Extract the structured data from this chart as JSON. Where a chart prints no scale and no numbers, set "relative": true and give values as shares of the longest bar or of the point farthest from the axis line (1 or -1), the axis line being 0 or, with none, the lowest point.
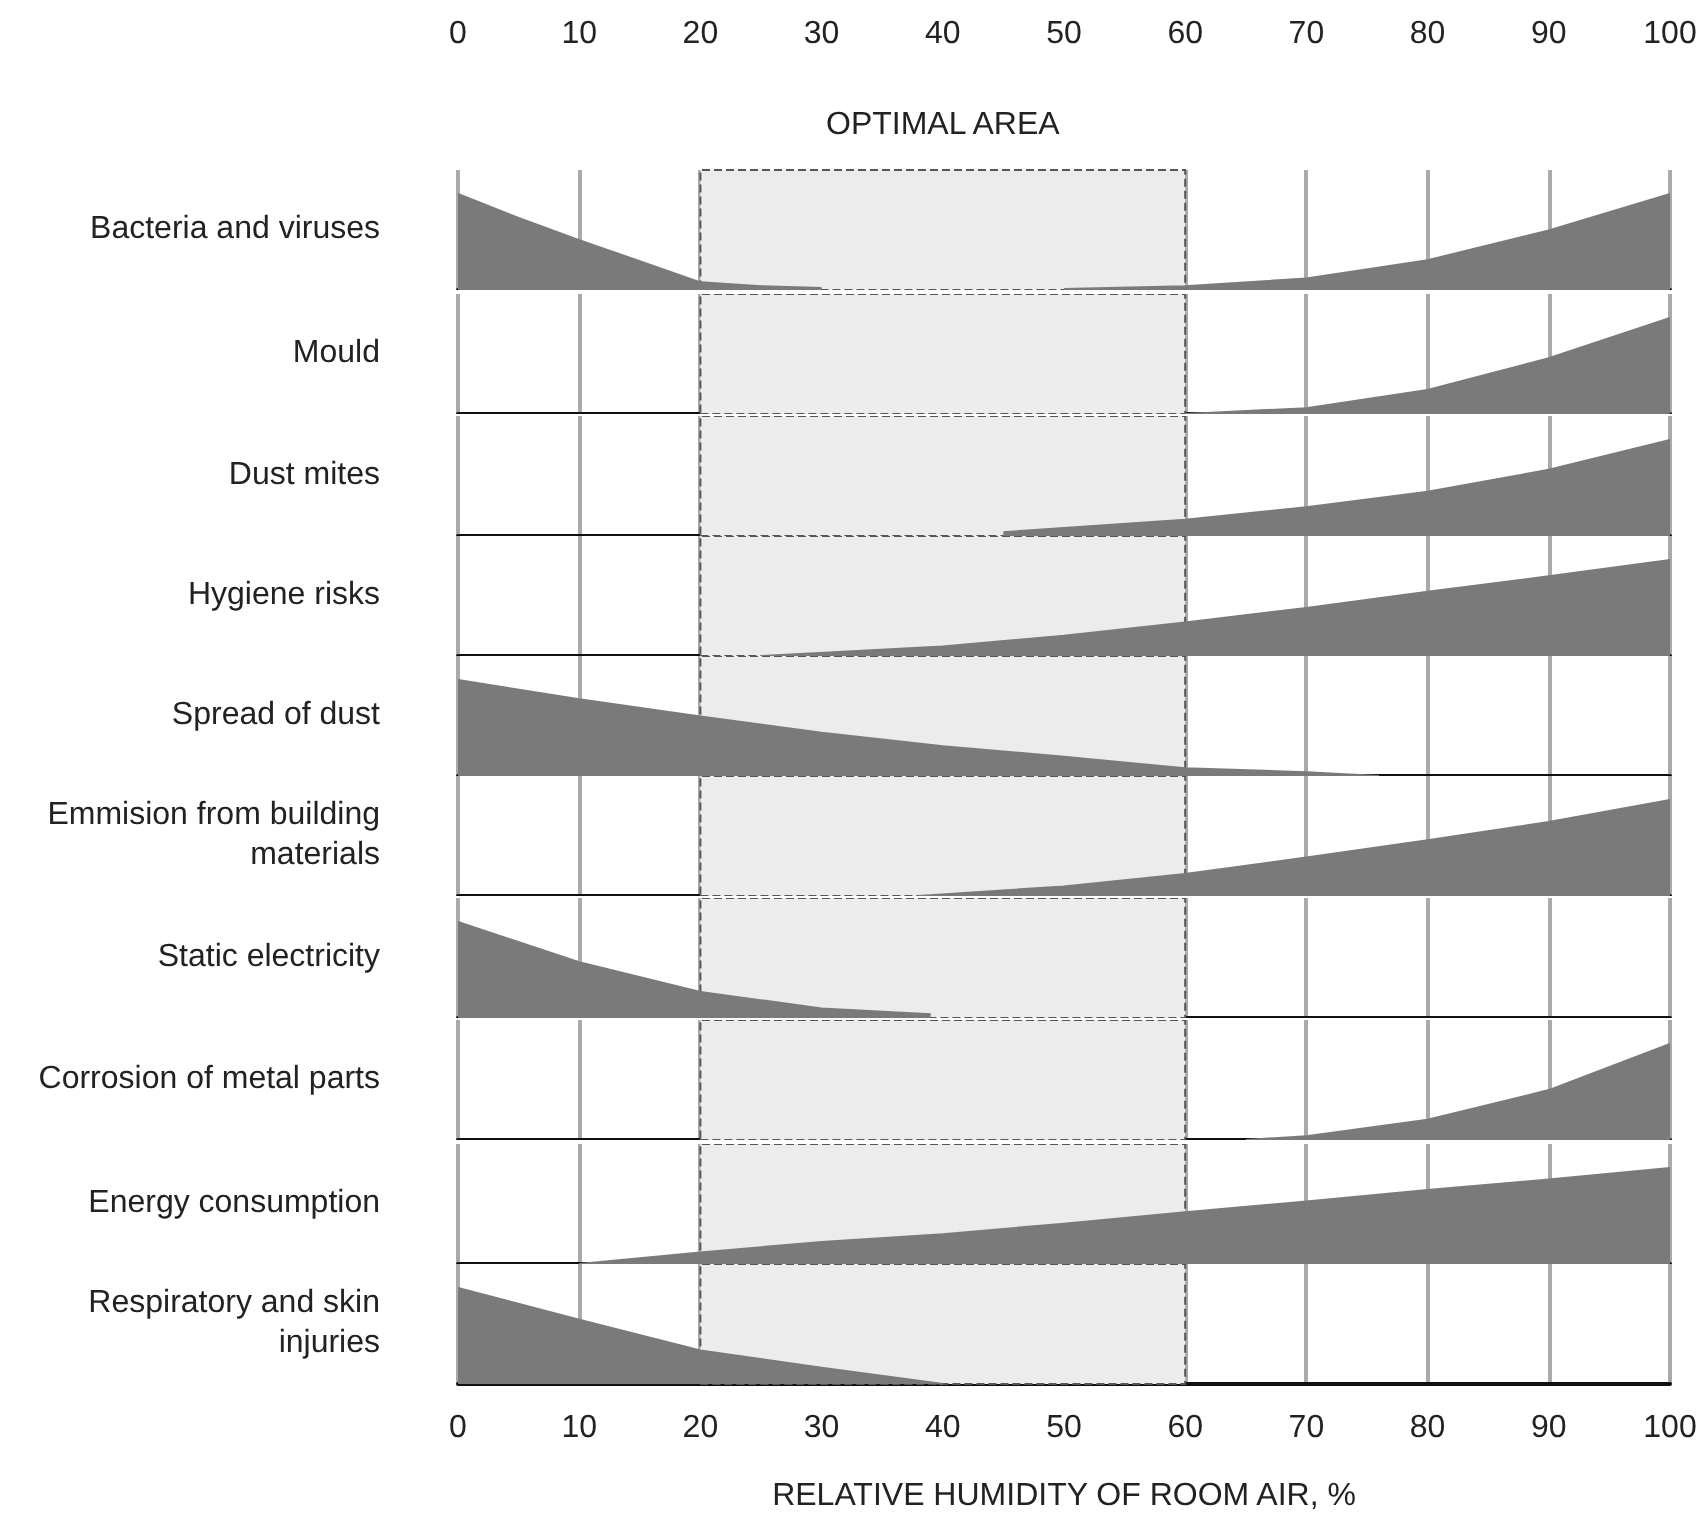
{
  "chart_data": [
    {
      "type": "area",
      "ylabel": "Bacteria and viruses",
      "relative": true,
      "xlim": [
        0,
        100
      ],
      "x2lim": [
        0,
        100
      ],
      "x2ticks": [
        0,
        10,
        20,
        30,
        40,
        50,
        60,
        70,
        80,
        90,
        100
      ],
      "grid": "x",
      "bands": [
        {
          "axis": "x",
          "from": 20,
          "to": 60,
          "label": "OPTIMAL AREA",
          "color": "#ececec"
        }
      ],
      "series": [
        {
          "color": "#7a7a7a",
          "x": [
            0,
            5,
            10,
            15,
            20,
            25,
            30,
            40,
            50,
            60,
            70,
            80,
            90,
            100
          ],
          "values": [
            1,
            0.75,
            0.52,
            0.3,
            0.08,
            0.04,
            0.02,
            null,
            0.01,
            0.04,
            0.12,
            0.31,
            0.62,
            1
          ]
        }
      ]
    },
    {
      "type": "area",
      "ylabel": "Mould",
      "relative": true,
      "xlim": [
        0,
        100
      ],
      "xticks": [
        0,
        10,
        20,
        30,
        40,
        50,
        60,
        70,
        80,
        90,
        100
      ],
      "grid": "x",
      "tick_labels": false,
      "bands": [
        {
          "axis": "x",
          "from": 20,
          "to": 60,
          "color": "#ececec"
        }
      ],
      "series": [
        {
          "color": "#7a7a7a",
          "x": [
            60,
            70,
            80,
            90,
            100
          ],
          "values": [
            0,
            0.06,
            0.25,
            0.58,
            1
          ]
        }
      ]
    },
    {
      "type": "area",
      "ylabel": "Dust mites",
      "relative": true,
      "xlim": [
        0,
        100
      ],
      "xticks": [
        0,
        10,
        20,
        30,
        40,
        50,
        60,
        70,
        80,
        90,
        100
      ],
      "grid": "x",
      "tick_labels": false,
      "bands": [
        {
          "axis": "x",
          "from": 20,
          "to": 60,
          "color": "#ececec"
        }
      ],
      "series": [
        {
          "color": "#7a7a7a",
          "x": [
            45,
            60,
            70,
            80,
            90,
            100
          ],
          "values": [
            0.04,
            0.17,
            0.3,
            0.46,
            0.69,
            1
          ]
        }
      ]
    },
    {
      "type": "area",
      "ylabel": "Hygiene risks",
      "relative": true,
      "xlim": [
        0,
        100
      ],
      "xticks": [
        0,
        10,
        20,
        30,
        40,
        50,
        60,
        70,
        80,
        90,
        100
      ],
      "grid": "x",
      "tick_labels": false,
      "bands": [
        {
          "axis": "x",
          "from": 20,
          "to": 60,
          "color": "#ececec"
        }
      ],
      "series": [
        {
          "color": "#7a7a7a",
          "x": [
            25,
            40,
            50,
            60,
            70,
            80,
            90,
            100
          ],
          "values": [
            0,
            0.1,
            0.21,
            0.35,
            0.5,
            0.67,
            0.83,
            1
          ]
        }
      ]
    },
    {
      "type": "area",
      "ylabel": "Spread of dust",
      "relative": true,
      "xlim": [
        0,
        100
      ],
      "xticks": [
        0,
        10,
        20,
        30,
        40,
        50,
        60,
        70,
        80,
        90,
        100
      ],
      "grid": "x",
      "tick_labels": false,
      "bands": [
        {
          "axis": "x",
          "from": 20,
          "to": 60,
          "color": "#ececec"
        }
      ],
      "series": [
        {
          "color": "#7a7a7a",
          "x": [
            0,
            10,
            20,
            30,
            40,
            50,
            60,
            70,
            76
          ],
          "values": [
            1,
            0.8,
            0.62,
            0.45,
            0.31,
            0.2,
            0.08,
            0.04,
            0
          ]
        }
      ]
    },
    {
      "type": "area",
      "ylabel": "Emmision from building materials",
      "relative": true,
      "xlim": [
        0,
        100
      ],
      "xticks": [
        0,
        10,
        20,
        30,
        40,
        50,
        60,
        70,
        80,
        90,
        100
      ],
      "grid": "x",
      "tick_labels": false,
      "bands": [
        {
          "axis": "x",
          "from": 20,
          "to": 60,
          "color": "#ececec"
        }
      ],
      "series": [
        {
          "color": "#7a7a7a",
          "x": [
            38,
            50,
            60,
            70,
            80,
            90,
            100
          ],
          "values": [
            0,
            0.1,
            0.23,
            0.4,
            0.58,
            0.77,
            1
          ]
        }
      ]
    },
    {
      "type": "area",
      "ylabel": "Static electricity",
      "relative": true,
      "xlim": [
        0,
        100
      ],
      "xticks": [
        0,
        10,
        20,
        30,
        40,
        50,
        60,
        70,
        80,
        90,
        100
      ],
      "grid": "x",
      "tick_labels": false,
      "bands": [
        {
          "axis": "x",
          "from": 20,
          "to": 60,
          "color": "#ececec"
        }
      ],
      "series": [
        {
          "color": "#7a7a7a",
          "x": [
            0,
            10,
            20,
            30,
            39
          ],
          "values": [
            1,
            0.58,
            0.27,
            0.1,
            0.04
          ]
        }
      ]
    },
    {
      "type": "area",
      "ylabel": "Corrosion of metal parts",
      "relative": true,
      "xlim": [
        0,
        100
      ],
      "xticks": [
        0,
        10,
        20,
        30,
        40,
        50,
        60,
        70,
        80,
        90,
        100
      ],
      "grid": "x",
      "tick_labels": false,
      "bands": [
        {
          "axis": "x",
          "from": 20,
          "to": 60,
          "color": "#ececec"
        }
      ],
      "series": [
        {
          "color": "#7a7a7a",
          "x": [
            65,
            70,
            80,
            90,
            100
          ],
          "values": [
            0,
            0.04,
            0.21,
            0.52,
            1
          ]
        }
      ]
    },
    {
      "type": "area",
      "ylabel": "Energy consumption",
      "relative": true,
      "xlim": [
        0,
        100
      ],
      "xticks": [
        0,
        10,
        20,
        30,
        40,
        50,
        60,
        70,
        80,
        90,
        100
      ],
      "grid": "x",
      "tick_labels": false,
      "bands": [
        {
          "axis": "x",
          "from": 20,
          "to": 60,
          "color": "#ececec"
        }
      ],
      "series": [
        {
          "color": "#7a7a7a",
          "x": [
            10,
            20,
            30,
            40,
            50,
            60,
            70,
            80,
            90,
            100
          ],
          "values": [
            0,
            0.12,
            0.23,
            0.31,
            0.42,
            0.54,
            0.65,
            0.77,
            0.88,
            1
          ]
        }
      ]
    },
    {
      "type": "area",
      "ylabel": "Respiratory and skin injuries",
      "xlabel": "RELATIVE HUMIDITY OF ROOM AIR, %",
      "relative": true,
      "xlim": [
        0,
        100
      ],
      "xticks": [
        0,
        10,
        20,
        30,
        40,
        50,
        60,
        70,
        80,
        90,
        100
      ],
      "grid": "x",
      "bands": [
        {
          "axis": "x",
          "from": 20,
          "to": 60,
          "color": "#ececec"
        }
      ],
      "series": [
        {
          "color": "#7a7a7a",
          "x": [
            0,
            10,
            20,
            30,
            40
          ],
          "values": [
            1,
            0.67,
            0.35,
            0.17,
            0
          ]
        }
      ]
    }
  ]
}
